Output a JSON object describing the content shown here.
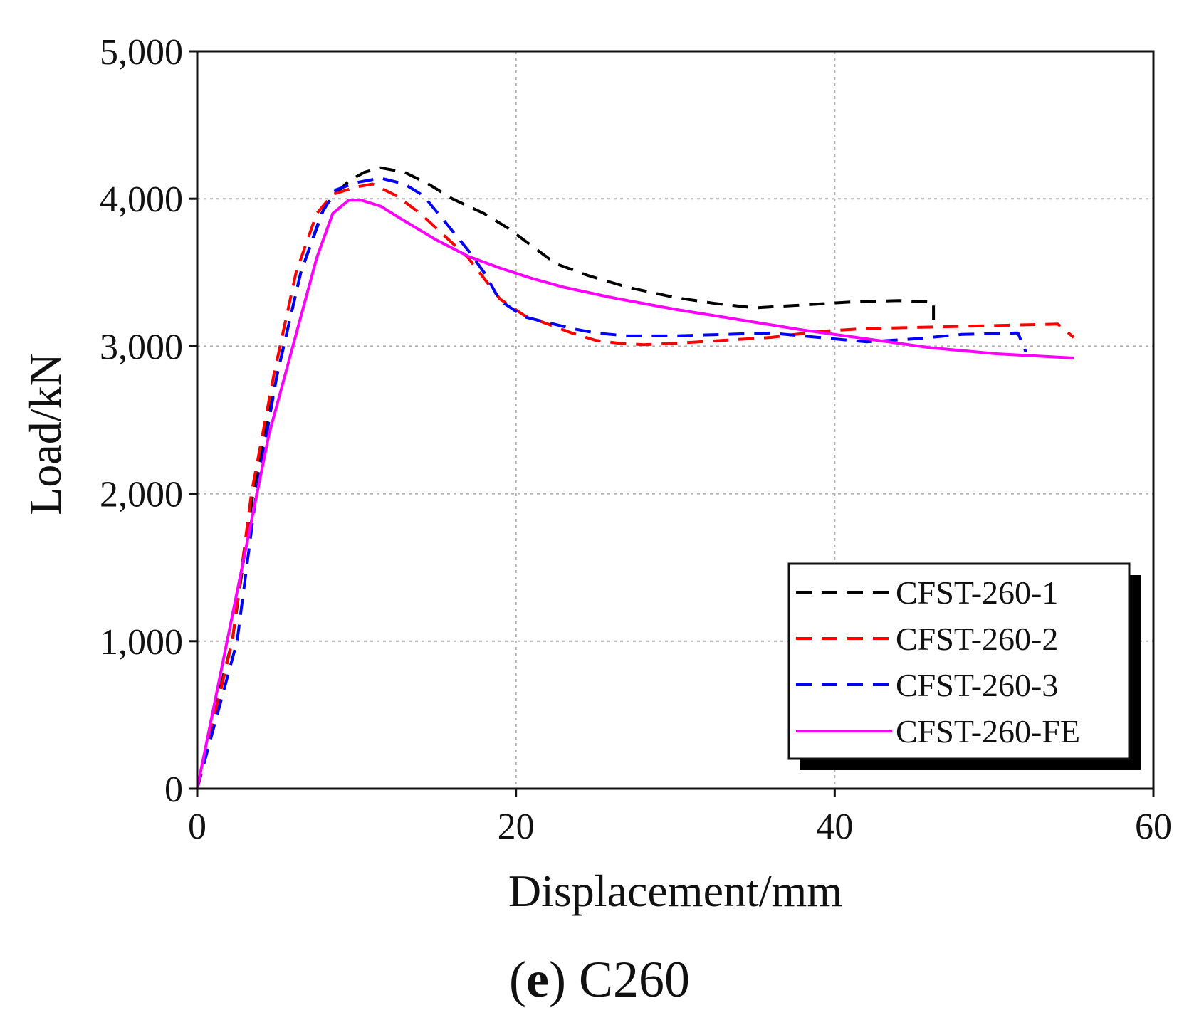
{
  "chart_data": {
    "type": "line",
    "title": "",
    "xlabel": "Displacement/mm",
    "ylabel": "Load/kN",
    "xlim": [
      0,
      60
    ],
    "ylim": [
      0,
      5000
    ],
    "x_ticks": [
      0,
      20,
      40,
      60
    ],
    "y_ticks": [
      0,
      1000,
      2000,
      3000,
      4000,
      5000
    ],
    "x_tick_labels": [
      "0",
      "20",
      "40",
      "60"
    ],
    "y_tick_labels": [
      "0",
      "1,000",
      "2,000",
      "3,000",
      "4,000",
      "5,000"
    ],
    "grid": true,
    "legend_position": "bottom-right",
    "series": [
      {
        "name": "CFST-260-1",
        "color": "#000000",
        "dash": "dashed",
        "points": [
          [
            0,
            0
          ],
          [
            1,
            500
          ],
          [
            2.2,
            1000
          ],
          [
            3.5,
            2000
          ],
          [
            5,
            2800
          ],
          [
            6.5,
            3500
          ],
          [
            8,
            3950
          ],
          [
            9.5,
            4120
          ],
          [
            10.5,
            4180
          ],
          [
            11.5,
            4210
          ],
          [
            13,
            4180
          ],
          [
            14.5,
            4100
          ],
          [
            16,
            4000
          ],
          [
            18,
            3900
          ],
          [
            19.5,
            3800
          ],
          [
            21,
            3680
          ],
          [
            22.5,
            3560
          ],
          [
            24.5,
            3480
          ],
          [
            27,
            3400
          ],
          [
            30,
            3330
          ],
          [
            32.5,
            3290
          ],
          [
            35,
            3260
          ],
          [
            38,
            3280
          ],
          [
            41,
            3300
          ],
          [
            44,
            3310
          ],
          [
            46.2,
            3300
          ],
          [
            46.2,
            3180
          ]
        ]
      },
      {
        "name": "CFST-260-2",
        "color": "#ff0000",
        "dash": "dashed",
        "points": [
          [
            0,
            0
          ],
          [
            1,
            450
          ],
          [
            2.2,
            1000
          ],
          [
            3.4,
            2000
          ],
          [
            4.8,
            2800
          ],
          [
            6.2,
            3500
          ],
          [
            7.5,
            3900
          ],
          [
            8.5,
            4030
          ],
          [
            10,
            4080
          ],
          [
            11,
            4100
          ],
          [
            12.5,
            4020
          ],
          [
            14,
            3900
          ],
          [
            15.5,
            3750
          ],
          [
            17,
            3600
          ],
          [
            18,
            3460
          ],
          [
            19,
            3320
          ],
          [
            20.5,
            3210
          ],
          [
            22,
            3150
          ],
          [
            23.5,
            3090
          ],
          [
            25,
            3040
          ],
          [
            26.5,
            3020
          ],
          [
            28,
            3010
          ],
          [
            30,
            3020
          ],
          [
            33,
            3040
          ],
          [
            36,
            3060
          ],
          [
            39,
            3100
          ],
          [
            42,
            3120
          ],
          [
            46,
            3130
          ],
          [
            50,
            3140
          ],
          [
            54,
            3150
          ],
          [
            55,
            3060
          ]
        ]
      },
      {
        "name": "CFST-260-3",
        "color": "#0000ff",
        "dash": "dashed",
        "points": [
          [
            0,
            0
          ],
          [
            1,
            400
          ],
          [
            2.5,
            1000
          ],
          [
            3.7,
            2000
          ],
          [
            5,
            2800
          ],
          [
            6.5,
            3500
          ],
          [
            7.8,
            3900
          ],
          [
            8.7,
            4060
          ],
          [
            10,
            4110
          ],
          [
            11.5,
            4140
          ],
          [
            13,
            4100
          ],
          [
            14.2,
            4020
          ],
          [
            15.5,
            3850
          ],
          [
            17,
            3650
          ],
          [
            18,
            3500
          ],
          [
            19,
            3310
          ],
          [
            20.5,
            3200
          ],
          [
            22,
            3160
          ],
          [
            23.5,
            3120
          ],
          [
            25,
            3090
          ],
          [
            27,
            3070
          ],
          [
            30,
            3070
          ],
          [
            33,
            3080
          ],
          [
            36,
            3090
          ],
          [
            39,
            3060
          ],
          [
            42,
            3030
          ],
          [
            45,
            3050
          ],
          [
            48,
            3080
          ],
          [
            51.5,
            3090
          ],
          [
            52,
            2960
          ]
        ]
      },
      {
        "name": "CFST-260-FE",
        "color": "#ff00ff",
        "dash": "solid",
        "points": [
          [
            0,
            0
          ],
          [
            1.5,
            800
          ],
          [
            3,
            1600
          ],
          [
            4.5,
            2400
          ],
          [
            6,
            3000
          ],
          [
            7.5,
            3600
          ],
          [
            8.5,
            3900
          ],
          [
            9.5,
            3990
          ],
          [
            10.3,
            3990
          ],
          [
            11.5,
            3950
          ],
          [
            13,
            3850
          ],
          [
            15,
            3720
          ],
          [
            17,
            3610
          ],
          [
            19,
            3530
          ],
          [
            21,
            3460
          ],
          [
            23,
            3400
          ],
          [
            26,
            3330
          ],
          [
            30,
            3250
          ],
          [
            34,
            3180
          ],
          [
            38,
            3110
          ],
          [
            42,
            3050
          ],
          [
            46,
            2990
          ],
          [
            50,
            2950
          ],
          [
            55,
            2920
          ]
        ]
      }
    ]
  },
  "caption": {
    "letter": "e",
    "paren_open": "(",
    "paren_close": ")",
    "text": "C260"
  }
}
